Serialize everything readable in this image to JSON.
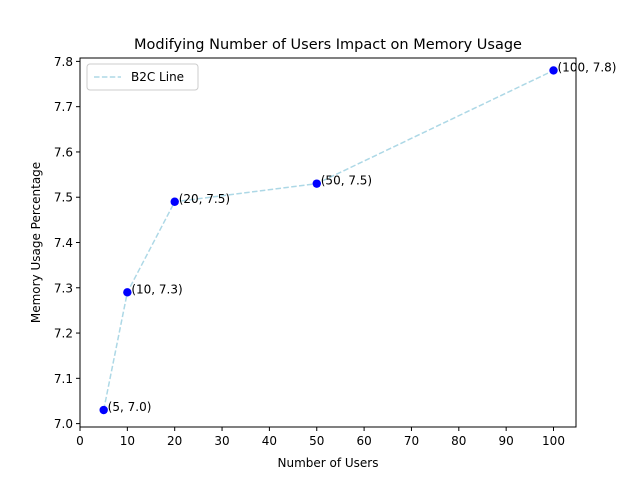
{
  "chart_data": {
    "type": "line",
    "title": "Modifying Number of Users Impact on Memory Usage",
    "xlabel": "Number of Users",
    "ylabel": "Memory Usage Percentage",
    "xlim": [
      0,
      104.75
    ],
    "ylim": [
      6.9925,
      7.8075
    ],
    "xticks": [
      0,
      10,
      20,
      30,
      40,
      50,
      60,
      70,
      80,
      90,
      100
    ],
    "xtick_labels": [
      "0",
      "10",
      "20",
      "30",
      "40",
      "50",
      "60",
      "70",
      "80",
      "90",
      "100"
    ],
    "yticks": [
      7.0,
      7.1,
      7.2,
      7.3,
      7.4,
      7.5,
      7.6,
      7.7,
      7.8
    ],
    "ytick_labels": [
      "7.0",
      "7.1",
      "7.2",
      "7.3",
      "7.4",
      "7.5",
      "7.6",
      "7.7",
      "7.8"
    ],
    "grid": false,
    "legend_position": "upper-left",
    "series": [
      {
        "name": "B2C Line",
        "style": "dashed",
        "line_color": "#add8e6",
        "x": [
          5,
          10,
          20,
          50,
          100
        ],
        "y": [
          7.03,
          7.29,
          7.49,
          7.53,
          7.78
        ]
      }
    ],
    "point_color": "#0000ff",
    "annotations": [
      "(5, 7.0)",
      "(10, 7.3)",
      "(20, 7.5)",
      "(50, 7.5)",
      "(100, 7.8)"
    ]
  }
}
